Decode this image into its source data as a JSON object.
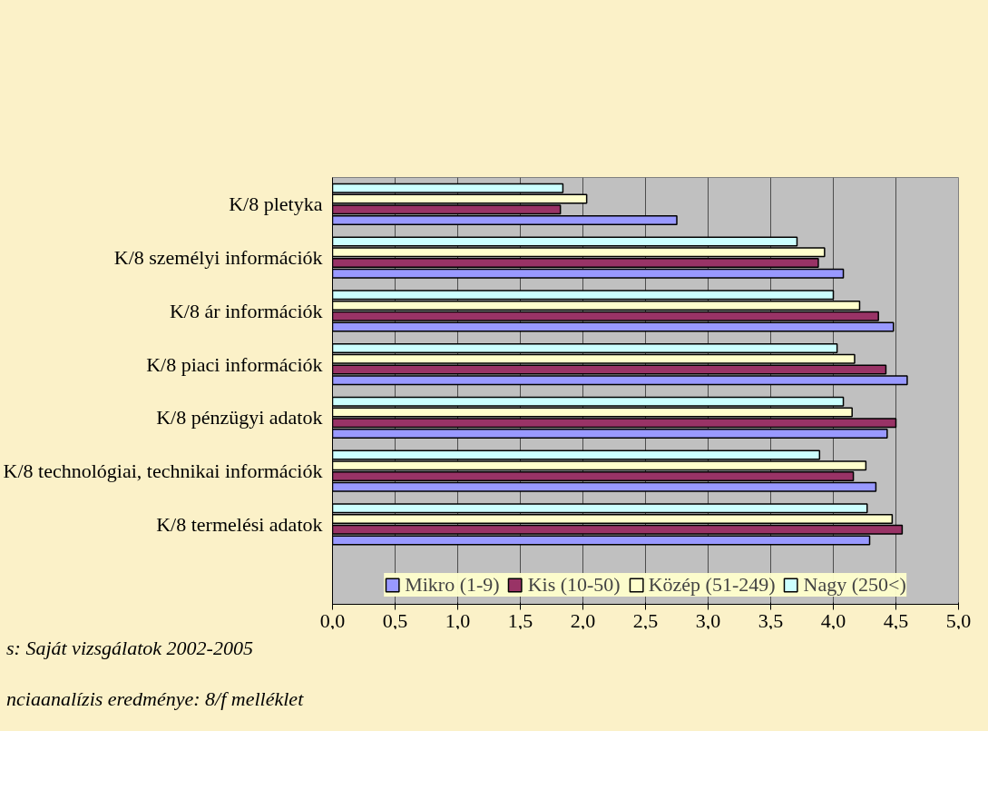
{
  "chart_data": {
    "type": "bar",
    "orientation": "horizontal",
    "categories": [
      "K/8 pletyka",
      "K/8 személyi információk",
      "K/8 ár információk",
      "K/8 piaci információk",
      "K/8 pénzügyi adatok",
      "K/8 technológiai, technikai információk",
      "K/8 termelési adatok"
    ],
    "series": [
      {
        "name": "Mikro (1-9)",
        "color": "#9999ff",
        "values": [
          2.75,
          4.08,
          4.48,
          4.59,
          4.43,
          4.34,
          4.29
        ]
      },
      {
        "name": "Kis (10-50)",
        "color": "#993366",
        "values": [
          1.82,
          3.88,
          4.36,
          4.42,
          4.5,
          4.16,
          4.55
        ]
      },
      {
        "name": "Közép (51-249)",
        "color": "#ffffcc",
        "values": [
          2.03,
          3.93,
          4.21,
          4.17,
          4.15,
          4.26,
          4.47
        ]
      },
      {
        "name": "Nagy (250<)",
        "color": "#ccffff",
        "values": [
          1.84,
          3.71,
          4.0,
          4.03,
          4.08,
          3.89,
          4.27
        ]
      }
    ],
    "xlim": [
      0,
      5
    ],
    "xticks": [
      {
        "value": 0,
        "label": "0,0"
      },
      {
        "value": 0.5,
        "label": "0,5"
      },
      {
        "value": 1,
        "label": "1,0"
      },
      {
        "value": 1.5,
        "label": "1,5"
      },
      {
        "value": 2,
        "label": "2,0"
      },
      {
        "value": 2.5,
        "label": "2,5"
      },
      {
        "value": 3,
        "label": "3,0"
      },
      {
        "value": 3.5,
        "label": "3,5"
      },
      {
        "value": 4,
        "label": "4,0"
      },
      {
        "value": 4.5,
        "label": "4,5"
      },
      {
        "value": 5,
        "label": "5,0"
      }
    ],
    "grid": "x",
    "legend": "bottom",
    "annotations": [
      "s: Saját vizsgálatok 2002-2005",
      "nciaanalízis eredménye: 8/f melléklet"
    ]
  }
}
